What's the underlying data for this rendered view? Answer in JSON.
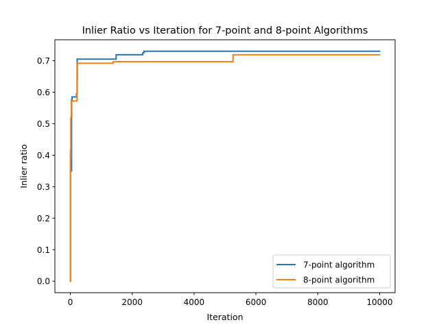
{
  "chart_data": {
    "type": "line",
    "title": "Inlier Ratio vs Iteration for 7-point and 8-point Algorithms",
    "xlabel": "Iteration",
    "ylabel": "Inlier ratio",
    "xlim": [
      -500,
      10500
    ],
    "ylim": [
      -0.0365,
      0.7665
    ],
    "xticks": [
      0,
      2000,
      4000,
      6000,
      8000,
      10000
    ],
    "xtick_labels": [
      "0",
      "2000",
      "4000",
      "6000",
      "8000",
      "10000"
    ],
    "yticks": [
      0.0,
      0.1,
      0.2,
      0.3,
      0.4,
      0.5,
      0.6,
      0.7
    ],
    "ytick_labels": [
      "0.0",
      "0.1",
      "0.2",
      "0.3",
      "0.4",
      "0.5",
      "0.6",
      "0.7"
    ],
    "grid": false,
    "legend_position": "lower-right",
    "series": [
      {
        "name": "7-point algorithm",
        "color": "#1f77b4",
        "step": true,
        "x": [
          0,
          5,
          12,
          25,
          40,
          55,
          70,
          180,
          200,
          220,
          1450,
          1480,
          2300,
          2340,
          2380,
          10000
        ],
        "y": [
          0.0,
          0.415,
          0.35,
          0.35,
          0.575,
          0.585,
          0.585,
          0.585,
          0.595,
          0.705,
          0.705,
          0.719,
          0.719,
          0.725,
          0.73,
          0.73
        ]
      },
      {
        "name": "8-point algorithm",
        "color": "#ff7f0e",
        "step": true,
        "x": [
          0,
          5,
          15,
          30,
          60,
          200,
          215,
          230,
          1350,
          1380,
          5230,
          5260,
          10000
        ],
        "y": [
          0.0,
          0.39,
          0.52,
          0.572,
          0.572,
          0.572,
          0.64,
          0.692,
          0.692,
          0.697,
          0.697,
          0.719,
          0.719
        ]
      }
    ]
  }
}
